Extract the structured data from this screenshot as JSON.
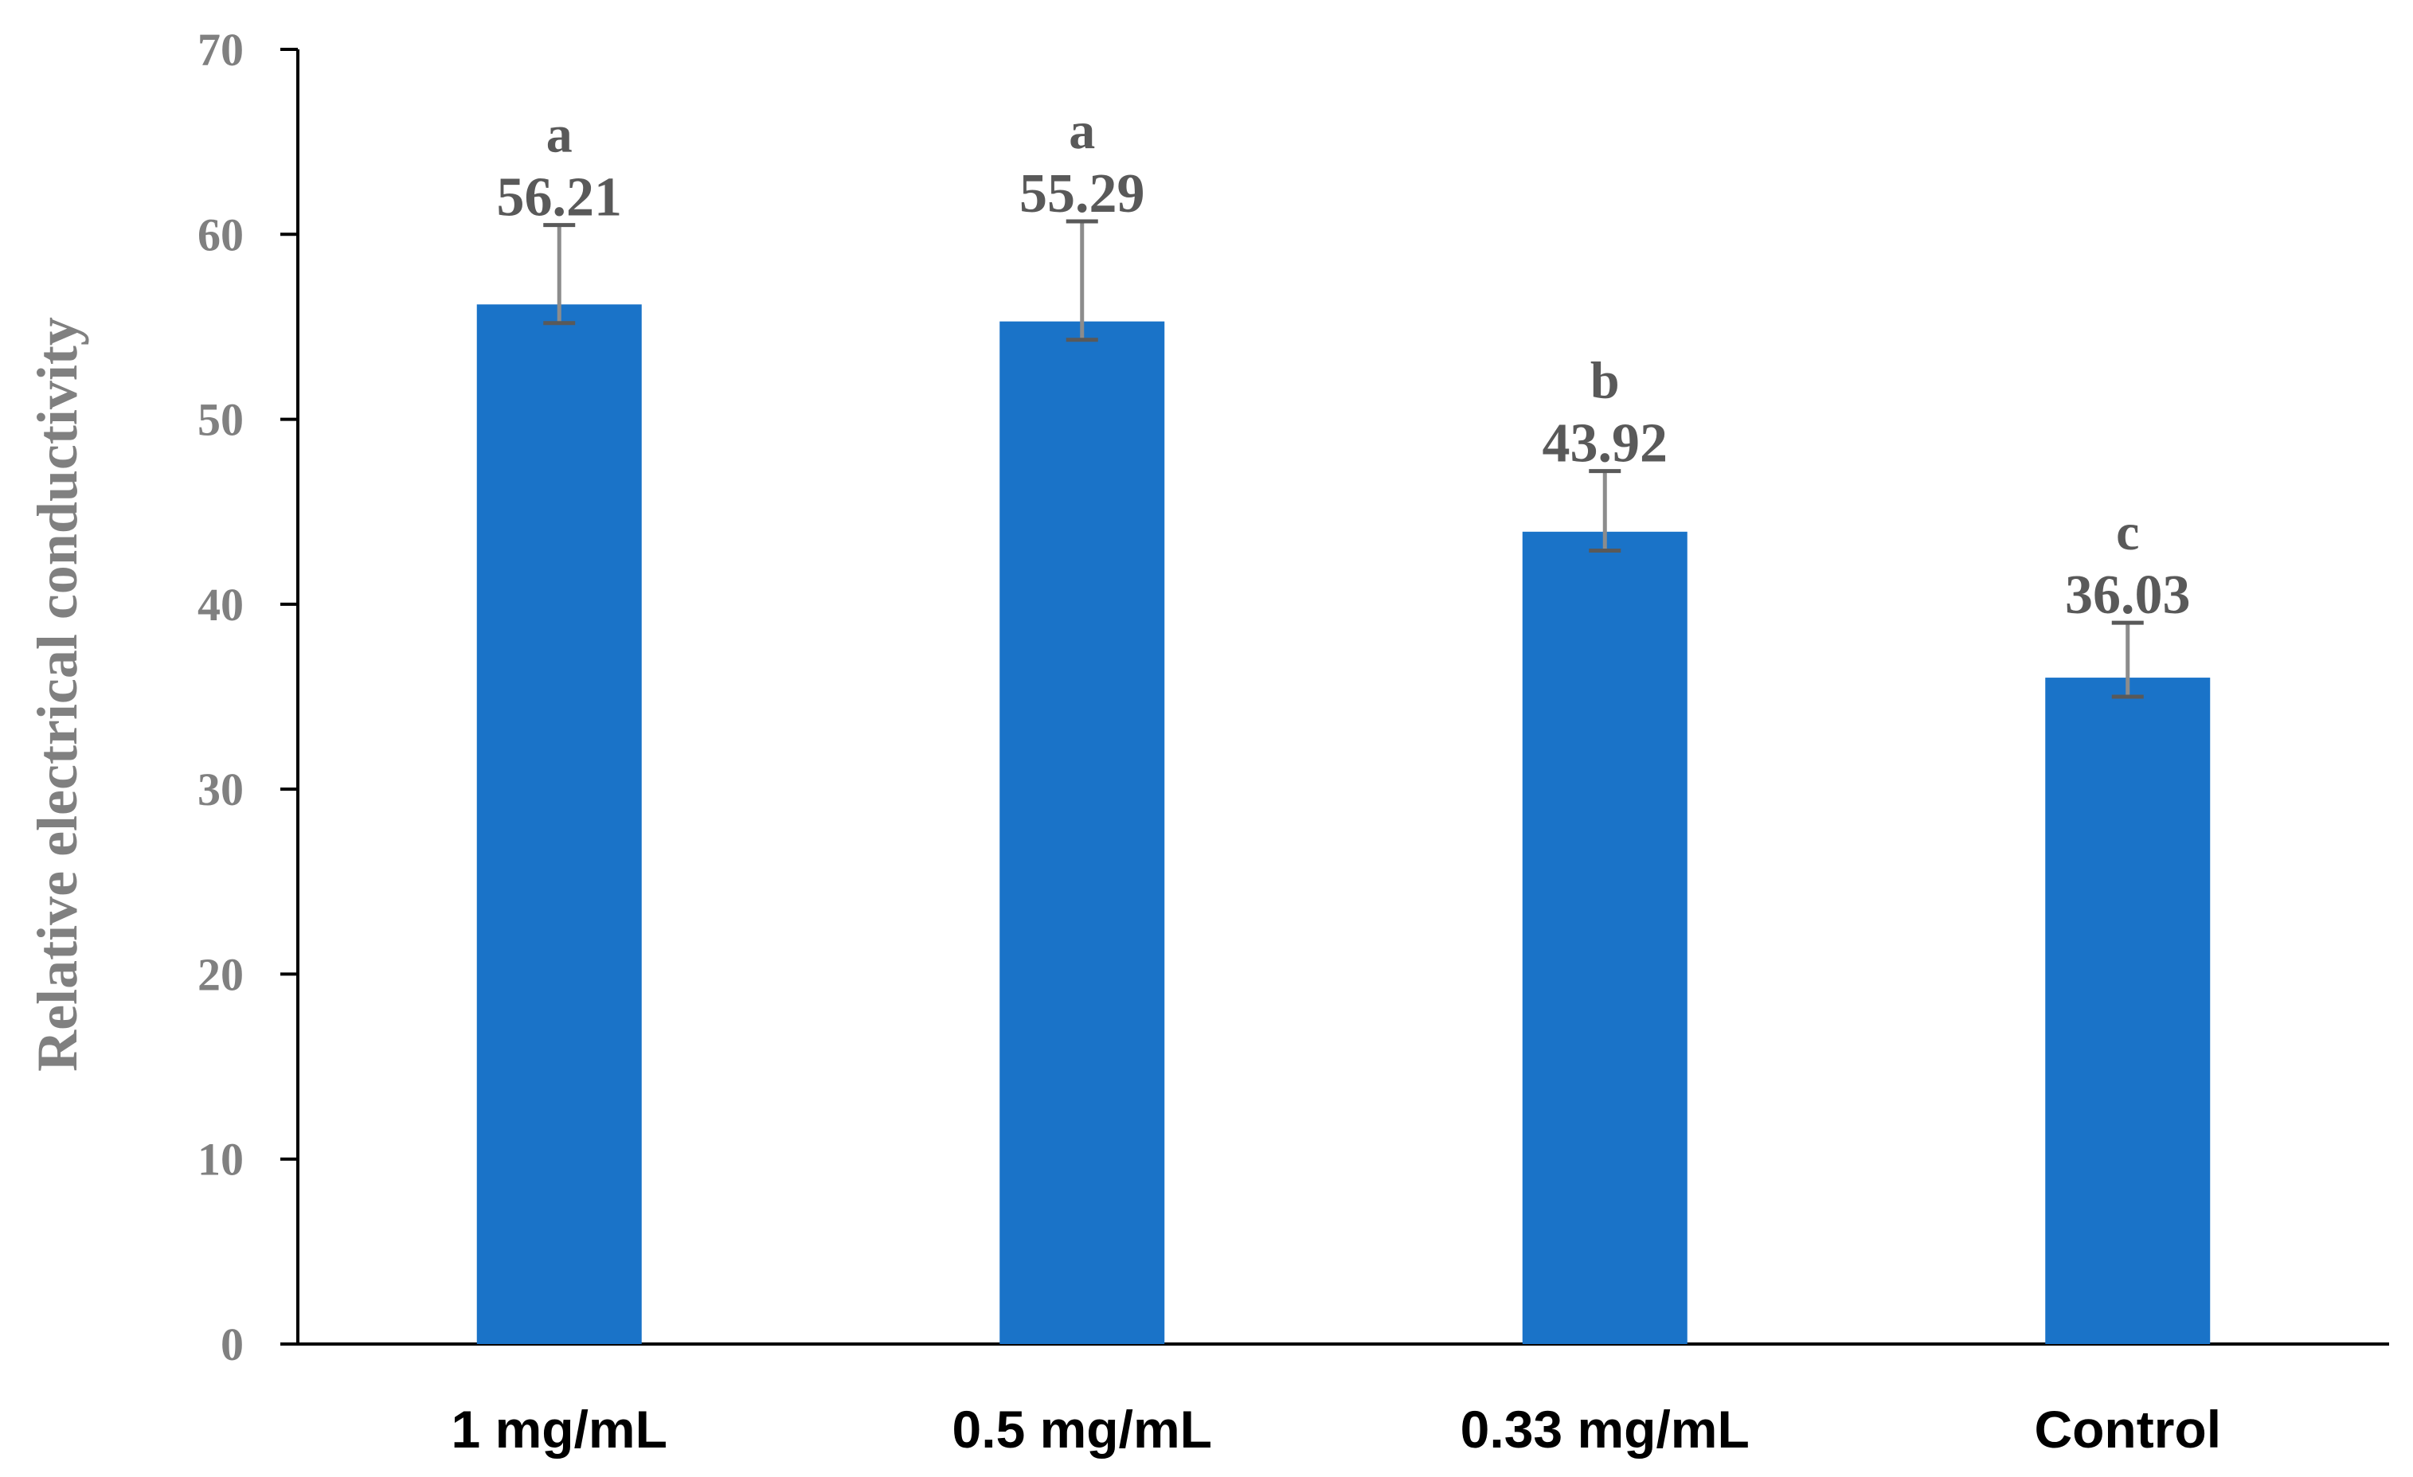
{
  "colors": {
    "bar": "#1a73c8",
    "axis": "#000000",
    "tick_label": "#808080",
    "value_label": "#595959",
    "error_stem": "#8c8c8c",
    "error_cap": "#595959"
  },
  "chart_data": {
    "type": "bar",
    "title": "",
    "xlabel": "",
    "ylabel": "Relative electrical conductivity",
    "ylim": [
      0,
      70
    ],
    "yticks": [
      "0",
      "10",
      "20",
      "30",
      "40",
      "50",
      "60",
      "70"
    ],
    "grid": false,
    "legend": "none",
    "categories": [
      "1 mg/mL",
      "0.5 mg/mL",
      "0.33 mg/mL",
      "Control"
    ],
    "values": [
      56.21,
      55.29,
      43.92,
      36.03
    ],
    "value_labels": [
      "56.21",
      "55.29",
      "43.92",
      "36.03"
    ],
    "significance_letters": [
      "a",
      "a",
      "b",
      "c"
    ],
    "error_low": [
      55.2,
      54.3,
      42.9,
      35.0
    ],
    "error_high": [
      60.5,
      60.7,
      47.2,
      39.0
    ]
  }
}
